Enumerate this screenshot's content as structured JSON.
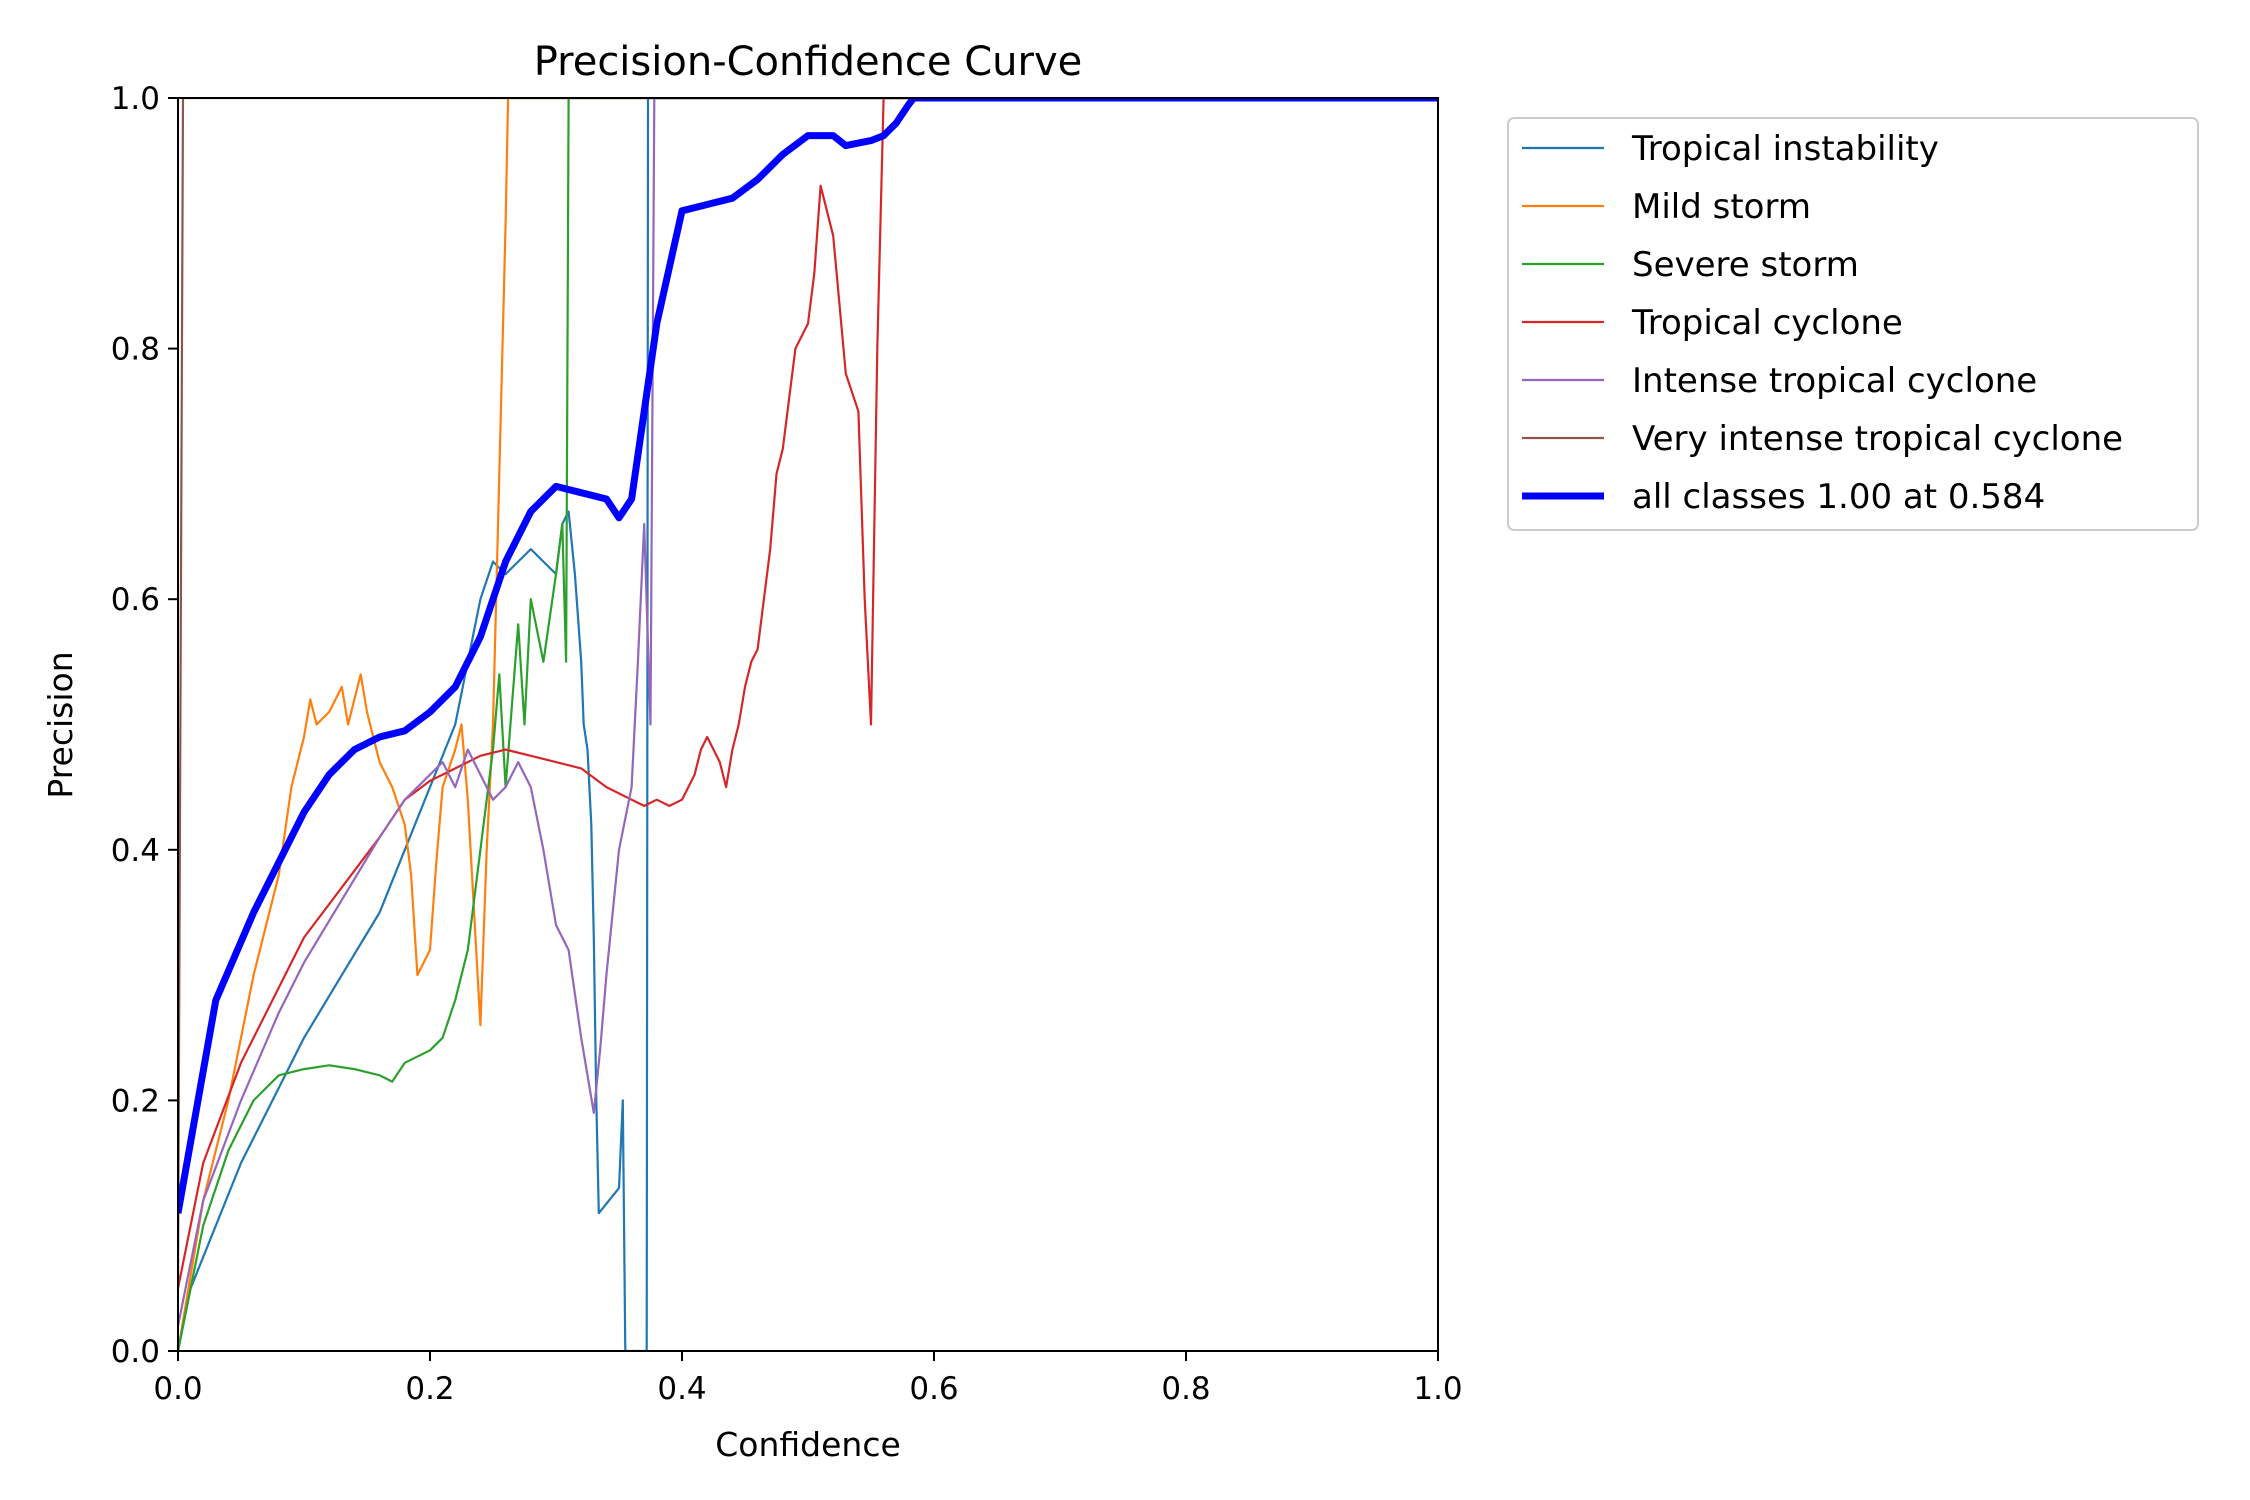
{
  "chart_data": {
    "type": "line",
    "title": "Precision-Confidence Curve",
    "xlabel": "Confidence",
    "ylabel": "Precision",
    "xlim": [
      0,
      1
    ],
    "ylim": [
      0,
      1
    ],
    "xticks": [
      0.0,
      0.2,
      0.4,
      0.6,
      0.8,
      1.0
    ],
    "yticks": [
      0.0,
      0.2,
      0.4,
      0.6,
      0.8,
      1.0
    ],
    "tick_labels": [
      "0.0",
      "0.2",
      "0.4",
      "0.6",
      "0.8",
      "1.0"
    ],
    "grid": false,
    "legend_position": "outside-top-right",
    "series": [
      {
        "name": "Tropical instability",
        "color": "#1f77b4",
        "width": 1,
        "points": [
          [
            0.0,
            0.0
          ],
          [
            0.01,
            0.05
          ],
          [
            0.03,
            0.1
          ],
          [
            0.05,
            0.15
          ],
          [
            0.08,
            0.21
          ],
          [
            0.1,
            0.25
          ],
          [
            0.13,
            0.3
          ],
          [
            0.16,
            0.35
          ],
          [
            0.18,
            0.4
          ],
          [
            0.2,
            0.45
          ],
          [
            0.22,
            0.5
          ],
          [
            0.23,
            0.55
          ],
          [
            0.24,
            0.6
          ],
          [
            0.25,
            0.63
          ],
          [
            0.26,
            0.62
          ],
          [
            0.27,
            0.63
          ],
          [
            0.28,
            0.64
          ],
          [
            0.29,
            0.63
          ],
          [
            0.3,
            0.62
          ],
          [
            0.305,
            0.66
          ],
          [
            0.31,
            0.67
          ],
          [
            0.315,
            0.62
          ],
          [
            0.32,
            0.55
          ],
          [
            0.322,
            0.5
          ],
          [
            0.325,
            0.48
          ],
          [
            0.328,
            0.42
          ],
          [
            0.33,
            0.33
          ],
          [
            0.332,
            0.2
          ],
          [
            0.334,
            0.11
          ],
          [
            0.35,
            0.13
          ],
          [
            0.353,
            0.2
          ],
          [
            0.355,
            0.0
          ],
          [
            0.372,
            0.0
          ],
          [
            0.373,
            1.0
          ],
          [
            1.0,
            1.0
          ]
        ]
      },
      {
        "name": "Mild storm",
        "color": "#ff7f0e",
        "width": 1,
        "points": [
          [
            0.0,
            0.0
          ],
          [
            0.02,
            0.12
          ],
          [
            0.04,
            0.2
          ],
          [
            0.06,
            0.3
          ],
          [
            0.08,
            0.38
          ],
          [
            0.09,
            0.45
          ],
          [
            0.1,
            0.49
          ],
          [
            0.105,
            0.52
          ],
          [
            0.11,
            0.5
          ],
          [
            0.12,
            0.51
          ],
          [
            0.13,
            0.53
          ],
          [
            0.135,
            0.5
          ],
          [
            0.14,
            0.52
          ],
          [
            0.145,
            0.54
          ],
          [
            0.15,
            0.51
          ],
          [
            0.16,
            0.47
          ],
          [
            0.17,
            0.45
          ],
          [
            0.18,
            0.42
          ],
          [
            0.185,
            0.38
          ],
          [
            0.19,
            0.3
          ],
          [
            0.2,
            0.32
          ],
          [
            0.205,
            0.39
          ],
          [
            0.21,
            0.45
          ],
          [
            0.22,
            0.48
          ],
          [
            0.225,
            0.5
          ],
          [
            0.23,
            0.44
          ],
          [
            0.235,
            0.35
          ],
          [
            0.24,
            0.26
          ],
          [
            0.245,
            0.4
          ],
          [
            0.25,
            0.5
          ],
          [
            0.255,
            0.7
          ],
          [
            0.26,
            0.9
          ],
          [
            0.262,
            1.0
          ],
          [
            1.0,
            1.0
          ]
        ]
      },
      {
        "name": "Severe storm",
        "color": "#2ca02c",
        "width": 1,
        "points": [
          [
            0.0,
            0.0
          ],
          [
            0.02,
            0.1
          ],
          [
            0.04,
            0.16
          ],
          [
            0.06,
            0.2
          ],
          [
            0.08,
            0.22
          ],
          [
            0.1,
            0.225
          ],
          [
            0.12,
            0.228
          ],
          [
            0.14,
            0.225
          ],
          [
            0.16,
            0.22
          ],
          [
            0.17,
            0.215
          ],
          [
            0.18,
            0.23
          ],
          [
            0.2,
            0.24
          ],
          [
            0.21,
            0.25
          ],
          [
            0.22,
            0.28
          ],
          [
            0.23,
            0.32
          ],
          [
            0.24,
            0.4
          ],
          [
            0.25,
            0.48
          ],
          [
            0.255,
            0.54
          ],
          [
            0.26,
            0.45
          ],
          [
            0.27,
            0.58
          ],
          [
            0.275,
            0.5
          ],
          [
            0.28,
            0.6
          ],
          [
            0.29,
            0.55
          ],
          [
            0.3,
            0.62
          ],
          [
            0.305,
            0.66
          ],
          [
            0.308,
            0.55
          ],
          [
            0.31,
            1.0
          ],
          [
            1.0,
            1.0
          ]
        ]
      },
      {
        "name": "Tropical cyclone",
        "color": "#d62728",
        "width": 1,
        "points": [
          [
            0.0,
            0.05
          ],
          [
            0.02,
            0.15
          ],
          [
            0.05,
            0.23
          ],
          [
            0.08,
            0.29
          ],
          [
            0.1,
            0.33
          ],
          [
            0.13,
            0.37
          ],
          [
            0.16,
            0.41
          ],
          [
            0.18,
            0.44
          ],
          [
            0.2,
            0.455
          ],
          [
            0.22,
            0.465
          ],
          [
            0.24,
            0.475
          ],
          [
            0.26,
            0.48
          ],
          [
            0.28,
            0.475
          ],
          [
            0.3,
            0.47
          ],
          [
            0.32,
            0.465
          ],
          [
            0.34,
            0.45
          ],
          [
            0.36,
            0.44
          ],
          [
            0.37,
            0.435
          ],
          [
            0.38,
            0.44
          ],
          [
            0.39,
            0.435
          ],
          [
            0.4,
            0.44
          ],
          [
            0.41,
            0.46
          ],
          [
            0.415,
            0.48
          ],
          [
            0.42,
            0.49
          ],
          [
            0.43,
            0.47
          ],
          [
            0.435,
            0.45
          ],
          [
            0.44,
            0.48
          ],
          [
            0.445,
            0.5
          ],
          [
            0.45,
            0.53
          ],
          [
            0.455,
            0.55
          ],
          [
            0.46,
            0.56
          ],
          [
            0.465,
            0.6
          ],
          [
            0.47,
            0.64
          ],
          [
            0.475,
            0.7
          ],
          [
            0.48,
            0.72
          ],
          [
            0.49,
            0.8
          ],
          [
            0.5,
            0.82
          ],
          [
            0.505,
            0.86
          ],
          [
            0.51,
            0.93
          ],
          [
            0.52,
            0.89
          ],
          [
            0.53,
            0.78
          ],
          [
            0.54,
            0.75
          ],
          [
            0.545,
            0.6
          ],
          [
            0.55,
            0.5
          ],
          [
            0.555,
            0.8
          ],
          [
            0.56,
            1.0
          ],
          [
            1.0,
            1.0
          ]
        ]
      },
      {
        "name": "Intense tropical cyclone",
        "color": "#9467bd",
        "width": 1,
        "points": [
          [
            0.0,
            0.02
          ],
          [
            0.02,
            0.12
          ],
          [
            0.05,
            0.2
          ],
          [
            0.08,
            0.27
          ],
          [
            0.1,
            0.31
          ],
          [
            0.13,
            0.36
          ],
          [
            0.16,
            0.41
          ],
          [
            0.18,
            0.44
          ],
          [
            0.2,
            0.46
          ],
          [
            0.21,
            0.47
          ],
          [
            0.22,
            0.45
          ],
          [
            0.23,
            0.48
          ],
          [
            0.24,
            0.46
          ],
          [
            0.25,
            0.44
          ],
          [
            0.26,
            0.45
          ],
          [
            0.27,
            0.47
          ],
          [
            0.28,
            0.45
          ],
          [
            0.29,
            0.4
          ],
          [
            0.3,
            0.34
          ],
          [
            0.31,
            0.32
          ],
          [
            0.32,
            0.25
          ],
          [
            0.325,
            0.22
          ],
          [
            0.33,
            0.19
          ],
          [
            0.335,
            0.24
          ],
          [
            0.34,
            0.3
          ],
          [
            0.35,
            0.4
          ],
          [
            0.36,
            0.45
          ],
          [
            0.365,
            0.55
          ],
          [
            0.37,
            0.66
          ],
          [
            0.375,
            0.5
          ],
          [
            0.378,
            1.0
          ],
          [
            1.0,
            1.0
          ]
        ]
      },
      {
        "name": "Very intense tropical cyclone",
        "color": "#8c564b",
        "width": 1,
        "points": [
          [
            0.0,
            0.05
          ],
          [
            0.004,
            1.0
          ],
          [
            1.0,
            1.0
          ]
        ]
      },
      {
        "name": "all classes 1.00 at 0.584",
        "color": "#0000ff",
        "width": 4,
        "points": [
          [
            0.0,
            0.11
          ],
          [
            0.03,
            0.28
          ],
          [
            0.06,
            0.35
          ],
          [
            0.08,
            0.39
          ],
          [
            0.1,
            0.43
          ],
          [
            0.12,
            0.46
          ],
          [
            0.14,
            0.48
          ],
          [
            0.16,
            0.49
          ],
          [
            0.18,
            0.495
          ],
          [
            0.2,
            0.51
          ],
          [
            0.22,
            0.53
          ],
          [
            0.24,
            0.57
          ],
          [
            0.26,
            0.63
          ],
          [
            0.28,
            0.67
          ],
          [
            0.3,
            0.69
          ],
          [
            0.32,
            0.685
          ],
          [
            0.34,
            0.68
          ],
          [
            0.35,
            0.665
          ],
          [
            0.36,
            0.68
          ],
          [
            0.37,
            0.75
          ],
          [
            0.38,
            0.82
          ],
          [
            0.4,
            0.91
          ],
          [
            0.42,
            0.915
          ],
          [
            0.44,
            0.92
          ],
          [
            0.46,
            0.935
          ],
          [
            0.48,
            0.955
          ],
          [
            0.5,
            0.97
          ],
          [
            0.52,
            0.97
          ],
          [
            0.53,
            0.962
          ],
          [
            0.55,
            0.966
          ],
          [
            0.56,
            0.97
          ],
          [
            0.57,
            0.98
          ],
          [
            0.58,
            0.995
          ],
          [
            0.584,
            1.0
          ],
          [
            1.0,
            1.0
          ]
        ]
      }
    ]
  }
}
